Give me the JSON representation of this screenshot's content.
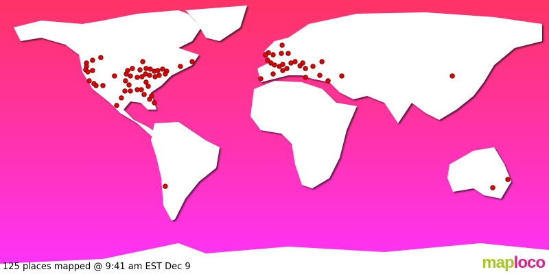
{
  "caption": "125 places mapped @ 9:41 am EST Dec 9",
  "logo": {
    "part1": "map",
    "part2": "loco"
  },
  "colors": {
    "gradient_top": "#ff3366",
    "gradient_bottom": "#ff33ff",
    "land": "#ffffff",
    "marker": "#e00000"
  },
  "places": [
    [
      52.2,
      -113.9
    ],
    [
      50.4,
      -119.3
    ],
    [
      48.6,
      -123.3
    ],
    [
      46.4,
      -123.3
    ],
    [
      44.1,
      -123.8
    ],
    [
      42.8,
      -122.4
    ],
    [
      43.7,
      -119.3
    ],
    [
      43.7,
      -96.3
    ],
    [
      45,
      -93.2
    ],
    [
      44.1,
      -88.2
    ],
    [
      45,
      -84.2
    ],
    [
      44.6,
      -81.5
    ],
    [
      43.2,
      -78.8
    ],
    [
      43.7,
      -76.5
    ],
    [
      44.6,
      -73.4
    ],
    [
      43.2,
      -70.7
    ],
    [
      41.4,
      -71.6
    ],
    [
      40.5,
      -75.6
    ],
    [
      39.6,
      -78.3
    ],
    [
      40.5,
      -81.9
    ],
    [
      41.4,
      -84.6
    ],
    [
      39.6,
      -86.9
    ],
    [
      39.2,
      -90
    ],
    [
      40.1,
      -94.5
    ],
    [
      41.4,
      -97.2
    ],
    [
      40.1,
      -104.9
    ],
    [
      36.9,
      -121.5
    ],
    [
      33.8,
      -117
    ],
    [
      33.8,
      -112.5
    ],
    [
      35.1,
      -118.4
    ],
    [
      36.9,
      -97.7
    ],
    [
      34.2,
      -95.4
    ],
    [
      30.2,
      -98.1
    ],
    [
      30.2,
      -94.5
    ],
    [
      31.1,
      -90
    ],
    [
      31.1,
      -87.3
    ],
    [
      27.9,
      -85.5
    ],
    [
      24.8,
      -81.9
    ],
    [
      22.5,
      -78.8
    ],
    [
      27,
      -80.6
    ],
    [
      36,
      -84.2
    ],
    [
      33.3,
      -82.8
    ],
    [
      25.7,
      -100.4
    ],
    [
      20.7,
      -103.5
    ],
    [
      46.4,
      -61.7
    ],
    [
      49.5,
      -54
    ],
    [
      49.5,
      -86.4
    ],
    [
      55.4,
      -4
    ],
    [
      54,
      -0.9
    ],
    [
      60.3,
      5
    ],
    [
      54.9,
      4.5
    ],
    [
      50.4,
      -4.5
    ],
    [
      48.6,
      -2.3
    ],
    [
      47.3,
      0
    ],
    [
      46.4,
      3.2
    ],
    [
      47.7,
      5.4
    ],
    [
      45,
      8.1
    ],
    [
      48.6,
      10.8
    ],
    [
      49.5,
      13.5
    ],
    [
      46.8,
      16.7
    ],
    [
      48.6,
      18.5
    ],
    [
      45,
      20.3
    ],
    [
      46.4,
      25.2
    ],
    [
      49.5,
      31.1
    ],
    [
      40.5,
      29.7
    ],
    [
      36.9,
      35.1
    ],
    [
      40.1,
      44.1
    ],
    [
      38.3,
      -9
    ],
    [
      41.4,
      -0.9
    ],
    [
      43.7,
      5.4
    ],
    [
      39.2,
      20.3
    ],
    [
      54,
      -5.9
    ],
    [
      54.9,
      9
    ],
    [
      40.1,
      116.6
    ],
    [
      -32.4,
      -71.6
    ],
    [
      -27.9,
      153
    ],
    [
      -33.3,
      143.1
    ]
  ]
}
